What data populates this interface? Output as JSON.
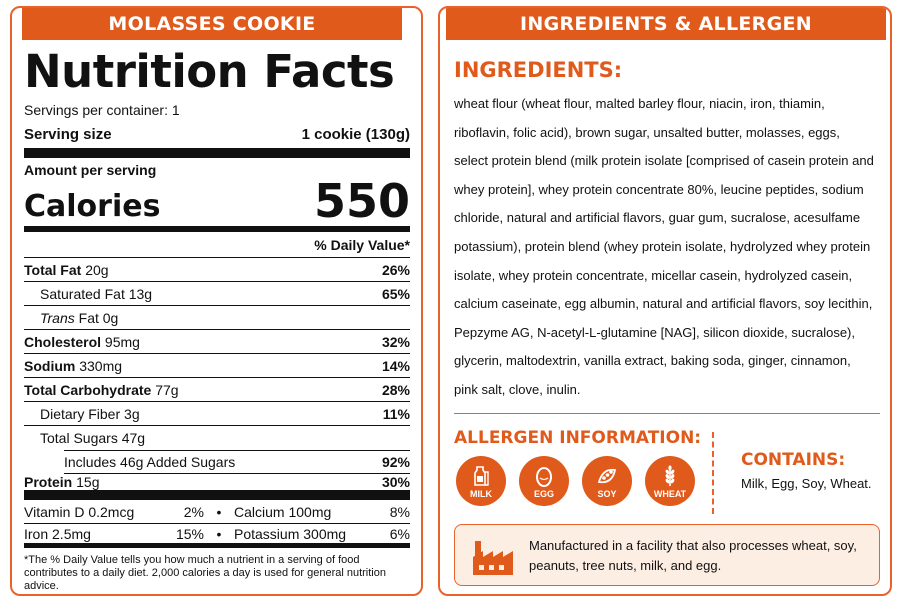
{
  "left": {
    "banner": "MOLASSES COOKIE",
    "title": "Nutrition Facts",
    "servings": "Servings per container: 1",
    "serving_size_label": "Serving size",
    "serving_size_value": "1 cookie (130g)",
    "amount_label": "Amount per serving",
    "calories_label": "Calories",
    "calories_value": "550",
    "dv_header": "% Daily Value*",
    "nutrients": [
      {
        "name": "Total Fat",
        "amount": "20g",
        "pct": "26%"
      },
      {
        "name": "Saturated Fat",
        "amount": "13g",
        "pct": "65%"
      },
      {
        "name": "Trans",
        "amount": "Fat  0g",
        "pct": ""
      },
      {
        "name": "Cholesterol",
        "amount": "95mg",
        "pct": "32%"
      },
      {
        "name": "Sodium",
        "amount": "330mg",
        "pct": "14%"
      },
      {
        "name": "Total Carbohydrate",
        "amount": "77g",
        "pct": "28%"
      },
      {
        "name": "Dietary Fiber",
        "amount": "3g",
        "pct": "11%"
      },
      {
        "name": "Total Sugars",
        "amount": "47g",
        "pct": ""
      },
      {
        "name": "Includes  46g Added Sugars",
        "amount": "",
        "pct": "92%"
      },
      {
        "name": "Protein",
        "amount": "15g",
        "pct": "30%"
      }
    ],
    "vitamins": [
      {
        "a_name": "Vitamin D 0.2mcg",
        "a_pct": "2%",
        "sep": "•",
        "b_name": "Calcium 100mg",
        "b_pct": "8%"
      },
      {
        "a_name": "Iron 2.5mg",
        "a_pct": "15%",
        "sep": "•",
        "b_name": "Potassium 300mg",
        "b_pct": "6%"
      }
    ],
    "footnote": "*The % Daily Value tells you how much a nutrient in a serving of food contributes to a daily diet. 2,000 calories a day is used for general nutrition advice."
  },
  "right": {
    "banner": "INGREDIENTS & ALLERGEN INFORMATION",
    "ingredients_heading": "INGREDIENTS:",
    "ingredients_text": "wheat flour (wheat flour, malted barley flour, niacin, iron, thiamin, riboflavin, folic acid), brown sugar, unsalted butter, molasses, eggs, select protein blend (milk protein isolate [comprised of casein protein and whey protein], whey protein concentrate 80%, leucine peptides, sodium chloride, natural and artificial flavors, guar gum, sucralose, acesulfame potassium), protein blend (whey protein isolate, hydrolyzed whey protein isolate, whey protein concentrate, micellar casein, hydrolyzed casein, calcium caseinate, egg albumin, natural and artificial flavors, soy lecithin, Pepzyme AG, N-acetyl-L-glutamine [NAG], silicon dioxide, sucralose), glycerin, maltodextrin, vanilla extract, baking soda, ginger, cinnamon, pink salt, clove, inulin.",
    "allergen_heading": "ALLERGEN INFORMATION:",
    "allergens": [
      {
        "label": "MILK",
        "icon": "milk-icon"
      },
      {
        "label": "EGG",
        "icon": "egg-icon"
      },
      {
        "label": "SOY",
        "icon": "soy-icon"
      },
      {
        "label": "WHEAT",
        "icon": "wheat-icon"
      }
    ],
    "contains_heading": "CONTAINS:",
    "contains_text": "Milk, Egg, Soy, Wheat.",
    "facility_text": "Manufactured in a facility that also processes wheat, soy, peanuts, tree nuts, milk, and egg."
  },
  "colors": {
    "accent": "#e05a1c",
    "facility_bg": "#fdeee4"
  }
}
